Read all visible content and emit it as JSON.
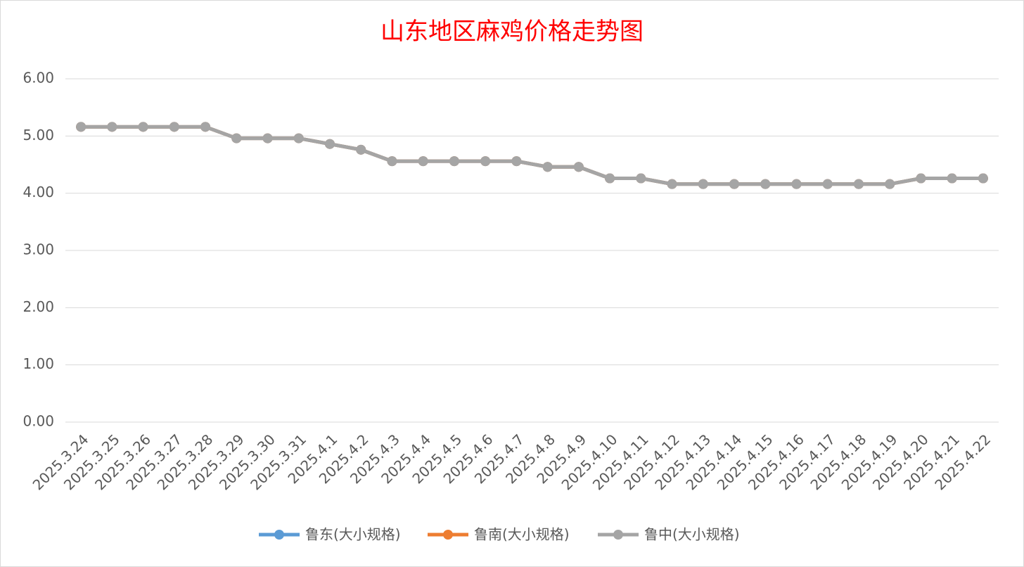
{
  "chart_data": {
    "type": "line",
    "title": "山东地区麻鸡价格走势图",
    "categories": [
      "2025.3.24",
      "2025.3.25",
      "2025.3.26",
      "2025.3.27",
      "2025.3.28",
      "2025.3.29",
      "2025.3.30",
      "2025.3.31",
      "2025.4.1",
      "2025.4.2",
      "2025.4.3",
      "2025.4.4",
      "2025.4.5",
      "2025.4.6",
      "2025.4.7",
      "2025.4.8",
      "2025.4.9",
      "2025.4.10",
      "2025.4.11",
      "2025.4.12",
      "2025.4.13",
      "2025.4.14",
      "2025.4.15",
      "2025.4.16",
      "2025.4.17",
      "2025.4.18",
      "2025.4.19",
      "2025.4.20",
      "2025.4.21",
      "2025.4.22"
    ],
    "series": [
      {
        "name": "鲁东(大小规格)",
        "color": "#5b9bd5",
        "values": [
          5.16,
          5.16,
          5.16,
          5.16,
          5.16,
          4.96,
          4.96,
          4.96,
          4.86,
          4.76,
          4.56,
          4.56,
          4.56,
          4.56,
          4.56,
          4.46,
          4.46,
          4.26,
          4.26,
          4.16,
          4.16,
          4.16,
          4.16,
          4.16,
          4.16,
          4.16,
          4.16,
          4.26,
          4.26,
          4.26
        ]
      },
      {
        "name": "鲁南(大小规格)",
        "color": "#ed7d31",
        "values": [
          5.16,
          5.16,
          5.16,
          5.16,
          5.16,
          4.96,
          4.96,
          4.96,
          4.86,
          4.76,
          4.56,
          4.56,
          4.56,
          4.56,
          4.56,
          4.46,
          4.46,
          4.26,
          4.26,
          4.16,
          4.16,
          4.16,
          4.16,
          4.16,
          4.16,
          4.16,
          4.16,
          4.26,
          4.26,
          4.26
        ]
      },
      {
        "name": "鲁中(大小规格)",
        "color": "#a5a5a5",
        "values": [
          5.16,
          5.16,
          5.16,
          5.16,
          5.16,
          4.96,
          4.96,
          4.96,
          4.86,
          4.76,
          4.56,
          4.56,
          4.56,
          4.56,
          4.56,
          4.46,
          4.46,
          4.26,
          4.26,
          4.16,
          4.16,
          4.16,
          4.16,
          4.16,
          4.16,
          4.16,
          4.16,
          4.26,
          4.26,
          4.26
        ]
      }
    ],
    "ylim": [
      0,
      6
    ],
    "yticks": [
      {
        "value": 0,
        "label": "0.00"
      },
      {
        "value": 1,
        "label": "1.00"
      },
      {
        "value": 2,
        "label": "2.00"
      },
      {
        "value": 3,
        "label": "3.00"
      },
      {
        "value": 4,
        "label": "4.00"
      },
      {
        "value": 5,
        "label": "5.00"
      },
      {
        "value": 6,
        "label": "6.00"
      }
    ],
    "grid": true,
    "legend": "bottom"
  }
}
